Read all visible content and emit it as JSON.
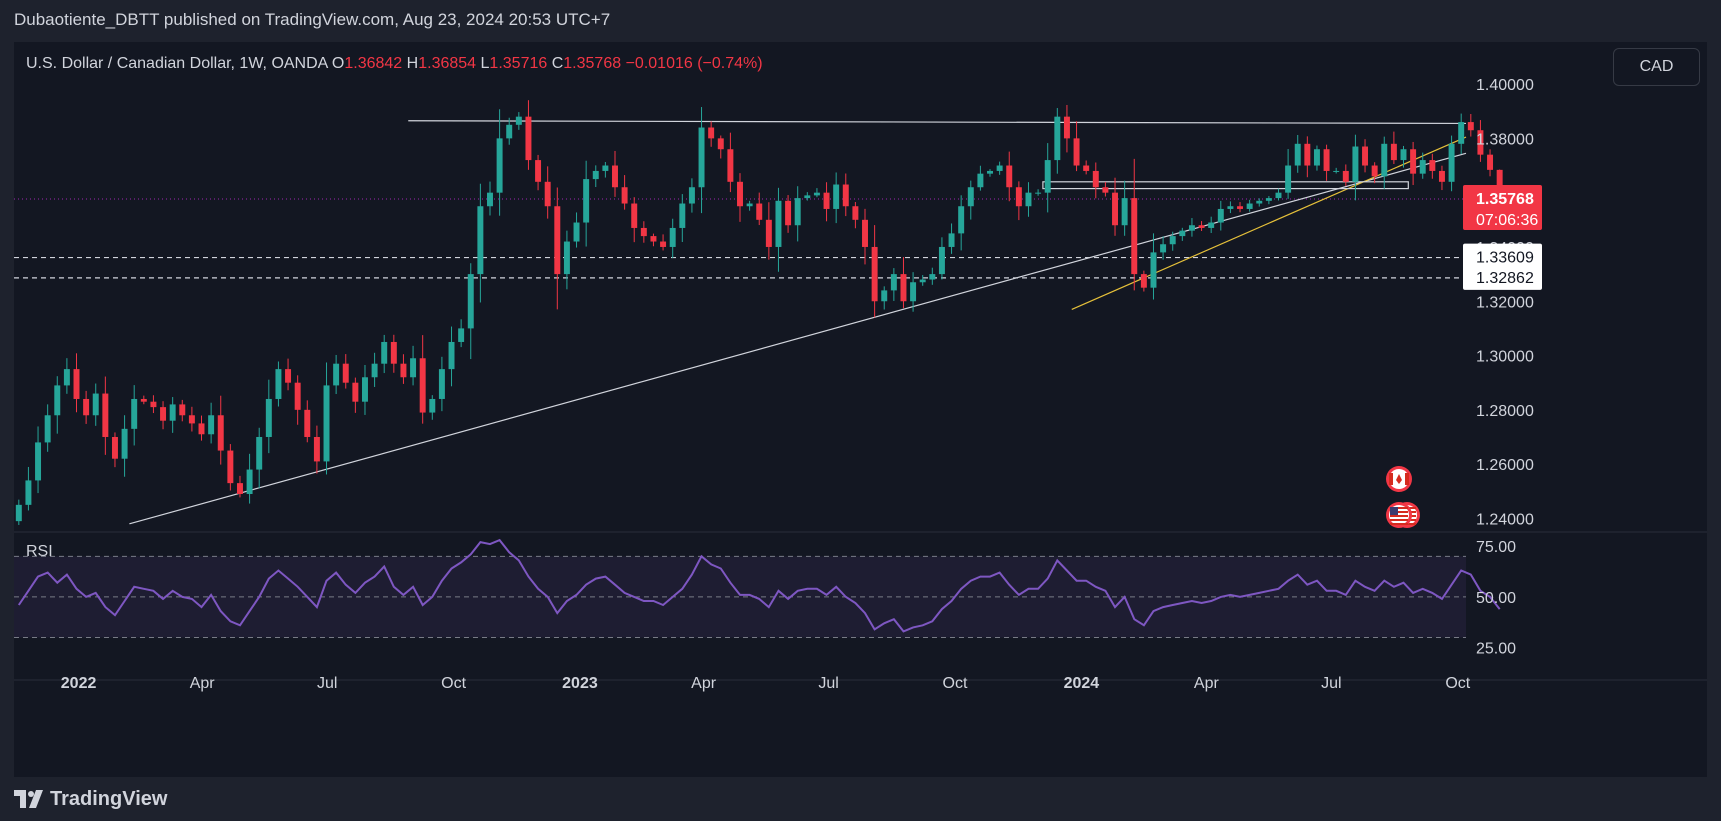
{
  "header": {
    "title": "Dubaotiente_DBTT published on TradingView.com, Aug 23, 2024 20:53 UTC+7"
  },
  "symbol": {
    "name": "U.S. Dollar / Canadian Dollar, 1W, OANDA",
    "o_label": "O",
    "o_value": "1.36842",
    "h_label": "H",
    "h_value": "1.36854",
    "l_label": "L",
    "l_value": "1.35716",
    "c_label": "C",
    "c_value": "1.35768",
    "change": "−0.01016 (−0.74%)"
  },
  "currency_button": "CAD",
  "price_axis": {
    "ticks": [
      "1.40000",
      "1.38000",
      "1.36000",
      "1.34000",
      "1.32000",
      "1.30000",
      "1.28000",
      "1.26000",
      "1.24000"
    ],
    "current_price": "1.35768",
    "countdown": "07:06:36",
    "level_labels": [
      "1.33609",
      "1.32862"
    ]
  },
  "rsi_panel": {
    "label": "RSI",
    "ticks": [
      "75.00",
      "50.00",
      "25.00"
    ],
    "line_color": "#7e57c2"
  },
  "time_axis": {
    "labels": [
      {
        "text": "2022",
        "bold": true
      },
      {
        "text": "Apr",
        "bold": false
      },
      {
        "text": "Jul",
        "bold": false
      },
      {
        "text": "Oct",
        "bold": false
      },
      {
        "text": "2023",
        "bold": true
      },
      {
        "text": "Apr",
        "bold": false
      },
      {
        "text": "Jul",
        "bold": false
      },
      {
        "text": "Oct",
        "bold": false
      },
      {
        "text": "2024",
        "bold": true
      },
      {
        "text": "Apr",
        "bold": false
      },
      {
        "text": "Jul",
        "bold": false
      },
      {
        "text": "Oct",
        "bold": false
      }
    ]
  },
  "footer": {
    "logo_text": "TradingView"
  },
  "colors": {
    "up": "#26a69a",
    "down": "#f23645",
    "background": "#131722",
    "rsi_band": "#7e57c2",
    "trendline_yellow": "#e5c03a"
  },
  "chart_data": {
    "type": "candlestick",
    "title": "U.S. Dollar / Canadian Dollar, 1W, OANDA",
    "timeframe": "1W",
    "x_range": [
      "2021-11-15",
      "2024-10-07"
    ],
    "y_range": [
      1.235,
      1.4155
    ],
    "rsi_range": [
      13,
      81
    ],
    "key_levels": [
      1.33609,
      1.32862
    ],
    "current_price": 1.35768,
    "weeks_from": "2021-11-15",
    "closes": [
      1.245,
      1.254,
      1.268,
      1.278,
      1.289,
      1.295,
      1.284,
      1.278,
      1.286,
      1.27,
      1.262,
      1.273,
      1.284,
      1.283,
      1.281,
      1.276,
      1.282,
      1.278,
      1.275,
      1.271,
      1.278,
      1.265,
      1.253,
      1.249,
      1.258,
      1.27,
      1.284,
      1.295,
      1.29,
      1.28,
      1.27,
      1.261,
      1.289,
      1.297,
      1.29,
      1.283,
      1.292,
      1.297,
      1.305,
      1.297,
      1.292,
      1.299,
      1.279,
      1.284,
      1.295,
      1.305,
      1.31,
      1.33,
      1.355,
      1.36,
      1.38,
      1.385,
      1.388,
      1.372,
      1.364,
      1.355,
      1.33,
      1.342,
      1.349,
      1.365,
      1.368,
      1.37,
      1.362,
      1.356,
      1.347,
      1.344,
      1.342,
      1.34,
      1.347,
      1.356,
      1.362,
      1.384,
      1.38,
      1.376,
      1.364,
      1.355,
      1.356,
      1.35,
      1.34,
      1.357,
      1.348,
      1.358,
      1.359,
      1.36,
      1.354,
      1.363,
      1.355,
      1.35,
      1.34,
      1.32,
      1.324,
      1.33,
      1.32,
      1.327,
      1.328,
      1.33,
      1.34,
      1.345,
      1.355,
      1.362,
      1.367,
      1.368,
      1.37,
      1.362,
      1.355,
      1.36,
      1.36,
      1.372,
      1.388,
      1.38,
      1.37,
      1.368,
      1.362,
      1.36,
      1.348,
      1.358,
      1.33,
      1.325,
      1.338,
      1.341,
      1.344,
      1.346,
      1.348,
      1.347,
      1.349,
      1.354,
      1.355,
      1.354,
      1.356,
      1.357,
      1.358,
      1.36,
      1.37,
      1.378,
      1.37,
      1.376,
      1.368,
      1.368,
      1.364,
      1.377,
      1.37,
      1.366,
      1.378,
      1.372,
      1.376,
      1.367,
      1.372,
      1.368,
      1.364,
      1.378,
      1.386,
      1.383,
      1.374,
      1.3684,
      1.3577
    ],
    "rsi": [
      46,
      53,
      60,
      62,
      57,
      61,
      54,
      50,
      52,
      45,
      41,
      48,
      55,
      54,
      53,
      49,
      53,
      50,
      49,
      45,
      51,
      43,
      38,
      36,
      43,
      50,
      59,
      63,
      59,
      55,
      50,
      45,
      58,
      62,
      56,
      52,
      57,
      60,
      65,
      55,
      51,
      55,
      46,
      50,
      58,
      64,
      67,
      71,
      77,
      76,
      78,
      72,
      68,
      60,
      54,
      50,
      42,
      48,
      51,
      56,
      59,
      60,
      56,
      52,
      50,
      48,
      48,
      46,
      50,
      54,
      61,
      70,
      66,
      64,
      57,
      51,
      51,
      49,
      45,
      53,
      49,
      53,
      54,
      54,
      51,
      55,
      50,
      47,
      42,
      34,
      37,
      39,
      33,
      35,
      36,
      38,
      44,
      48,
      54,
      58,
      60,
      60,
      62,
      56,
      51,
      54,
      54,
      59,
      68,
      63,
      58,
      58,
      55,
      53,
      45,
      50,
      39,
      36,
      43,
      45,
      46,
      47,
      48,
      47,
      48,
      50,
      51,
      50,
      51,
      52,
      53,
      54,
      58,
      61,
      56,
      58,
      53,
      53,
      51,
      58,
      55,
      53,
      58,
      55,
      57,
      52,
      54,
      52,
      49,
      56,
      63,
      61,
      53,
      50,
      44
    ]
  }
}
